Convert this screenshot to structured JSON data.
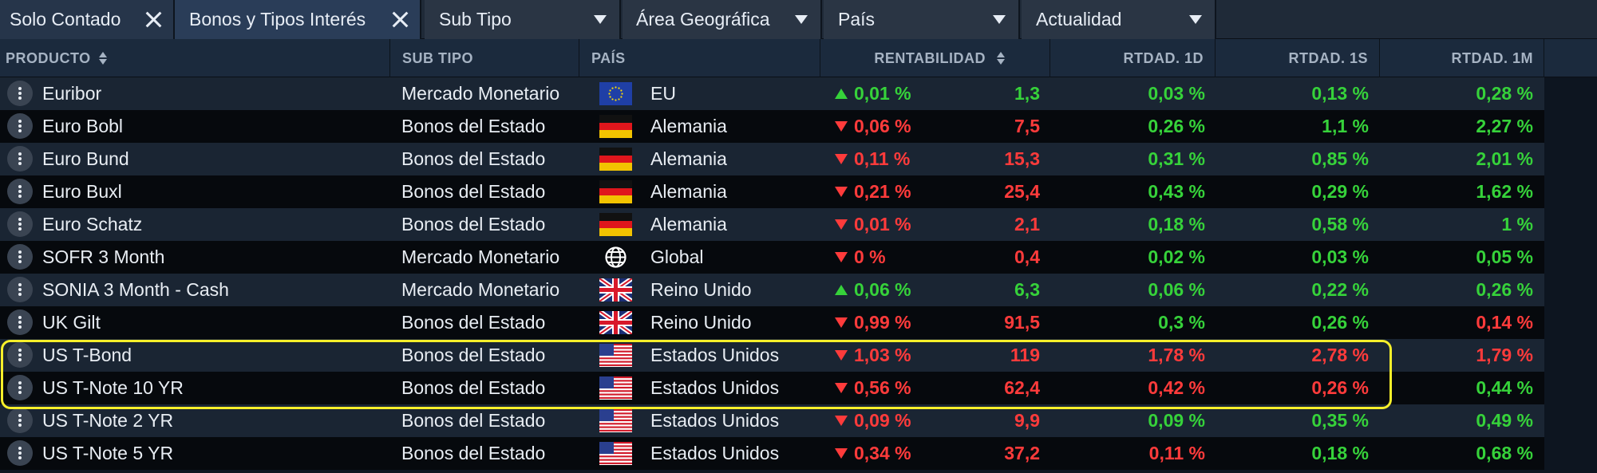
{
  "filters": {
    "removable": [
      {
        "label": "Solo Contado"
      },
      {
        "label": "Bonos y Tipos Interés"
      }
    ],
    "dropdowns": [
      {
        "label": "Sub Tipo"
      },
      {
        "label": "Área Geográfica"
      },
      {
        "label": "País"
      },
      {
        "label": "Actualidad"
      }
    ]
  },
  "columns": {
    "producto": "PRODUCTO",
    "subtipo": "SUB TIPO",
    "pais": "PAÍS",
    "rentabilidad": "RENTABILIDAD",
    "rtdad1d": "RTDAD. 1D",
    "rtdad1s": "RTDAD. 1S",
    "rtdad1m": "RTDAD. 1M"
  },
  "rows": [
    {
      "producto": "Euribor",
      "subtipo": "Mercado Monetario",
      "flag": "eu-flag",
      "pais": "EU",
      "trend": "up",
      "rent": "0,01 %",
      "rent_class": "pos",
      "val": "1,3",
      "val_class": "pos",
      "d1": "0,03 %",
      "d1_class": "pos",
      "s1": "0,13 %",
      "s1_class": "pos",
      "m1": "0,28 %",
      "m1_class": "pos"
    },
    {
      "producto": "Euro Bobl",
      "subtipo": "Bonos del Estado",
      "flag": "germany-flag",
      "pais": "Alemania",
      "trend": "down",
      "rent": "0,06 %",
      "rent_class": "neg",
      "val": "7,5",
      "val_class": "neg",
      "d1": "0,26 %",
      "d1_class": "pos",
      "s1": "1,1 %",
      "s1_class": "pos",
      "m1": "2,27 %",
      "m1_class": "pos"
    },
    {
      "producto": "Euro Bund",
      "subtipo": "Bonos del Estado",
      "flag": "germany-flag",
      "pais": "Alemania",
      "trend": "down",
      "rent": "0,11 %",
      "rent_class": "neg",
      "val": "15,3",
      "val_class": "neg",
      "d1": "0,31 %",
      "d1_class": "pos",
      "s1": "0,85 %",
      "s1_class": "pos",
      "m1": "2,01 %",
      "m1_class": "pos"
    },
    {
      "producto": "Euro Buxl",
      "subtipo": "Bonos del Estado",
      "flag": "germany-flag",
      "pais": "Alemania",
      "trend": "down",
      "rent": "0,21 %",
      "rent_class": "neg",
      "val": "25,4",
      "val_class": "neg",
      "d1": "0,43 %",
      "d1_class": "pos",
      "s1": "0,29 %",
      "s1_class": "pos",
      "m1": "1,62 %",
      "m1_class": "pos"
    },
    {
      "producto": "Euro Schatz",
      "subtipo": "Bonos del Estado",
      "flag": "germany-flag",
      "pais": "Alemania",
      "trend": "down",
      "rent": "0,01 %",
      "rent_class": "neg",
      "val": "2,1",
      "val_class": "neg",
      "d1": "0,18 %",
      "d1_class": "pos",
      "s1": "0,58 %",
      "s1_class": "pos",
      "m1": "1 %",
      "m1_class": "pos"
    },
    {
      "producto": "SOFR 3 Month",
      "subtipo": "Mercado Monetario",
      "flag": "globe-icon",
      "pais": "Global",
      "trend": "down",
      "rent": "0 %",
      "rent_class": "neg",
      "val": "0,4",
      "val_class": "neg",
      "d1": "0,02 %",
      "d1_class": "pos",
      "s1": "0,03 %",
      "s1_class": "pos",
      "m1": "0,05 %",
      "m1_class": "pos"
    },
    {
      "producto": "SONIA 3 Month - Cash",
      "subtipo": "Mercado Monetario",
      "flag": "uk-flag",
      "pais": "Reino Unido",
      "trend": "up",
      "rent": "0,06 %",
      "rent_class": "pos",
      "val": "6,3",
      "val_class": "pos",
      "d1": "0,06 %",
      "d1_class": "pos",
      "s1": "0,22 %",
      "s1_class": "pos",
      "m1": "0,26 %",
      "m1_class": "pos"
    },
    {
      "producto": "UK Gilt",
      "subtipo": "Bonos del Estado",
      "flag": "uk-flag",
      "pais": "Reino Unido",
      "trend": "down",
      "rent": "0,99 %",
      "rent_class": "neg",
      "val": "91,5",
      "val_class": "neg",
      "d1": "0,3 %",
      "d1_class": "pos",
      "s1": "0,26 %",
      "s1_class": "pos",
      "m1": "0,14 %",
      "m1_class": "neg"
    },
    {
      "producto": "US T-Bond",
      "subtipo": "Bonos del Estado",
      "flag": "us-flag",
      "pais": "Estados Unidos",
      "trend": "down",
      "rent": "1,03 %",
      "rent_class": "neg",
      "val": "119",
      "val_class": "neg",
      "d1": "1,78 %",
      "d1_class": "neg",
      "s1": "2,78 %",
      "s1_class": "neg",
      "m1": "1,79 %",
      "m1_class": "neg"
    },
    {
      "producto": "US T-Note 10 YR",
      "subtipo": "Bonos del Estado",
      "flag": "us-flag",
      "pais": "Estados Unidos",
      "trend": "down",
      "rent": "0,56 %",
      "rent_class": "neg",
      "val": "62,4",
      "val_class": "neg",
      "d1": "0,42 %",
      "d1_class": "neg",
      "s1": "0,26 %",
      "s1_class": "neg",
      "m1": "0,44 %",
      "m1_class": "pos"
    },
    {
      "producto": "US T-Note 2 YR",
      "subtipo": "Bonos del Estado",
      "flag": "us-flag",
      "pais": "Estados Unidos",
      "trend": "down",
      "rent": "0,09 %",
      "rent_class": "neg",
      "val": "9,9",
      "val_class": "neg",
      "d1": "0,09 %",
      "d1_class": "pos",
      "s1": "0,35 %",
      "s1_class": "pos",
      "m1": "0,49 %",
      "m1_class": "pos"
    },
    {
      "producto": "US T-Note 5 YR",
      "subtipo": "Bonos del Estado",
      "flag": "us-flag",
      "pais": "Estados Unidos",
      "trend": "down",
      "rent": "0,34 %",
      "rent_class": "neg",
      "val": "37,2",
      "val_class": "neg",
      "d1": "0,11 %",
      "d1_class": "neg",
      "s1": "0,18 %",
      "s1_class": "pos",
      "m1": "0,68 %",
      "m1_class": "pos"
    }
  ],
  "colors": {
    "positive": "#36d23a",
    "negative": "#ff3b3b",
    "highlight": "#f6ef2a",
    "header_bg": "#1b2a3d"
  }
}
